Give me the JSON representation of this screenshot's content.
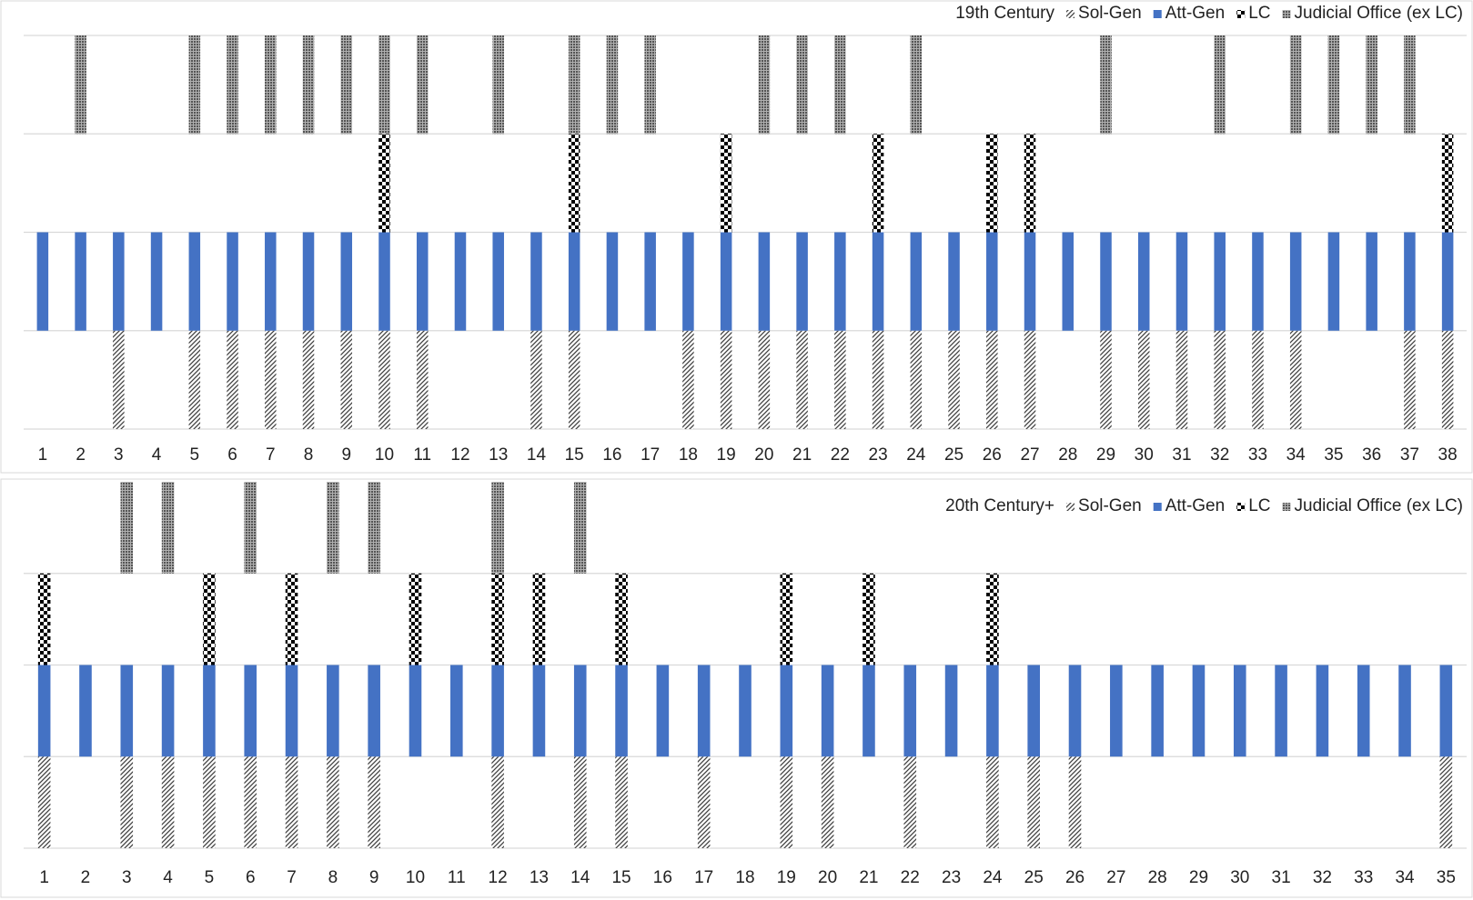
{
  "chart_data": [
    {
      "type": "bar",
      "title": "19th Century",
      "categories": [
        "1",
        "2",
        "3",
        "4",
        "5",
        "6",
        "7",
        "8",
        "9",
        "10",
        "11",
        "12",
        "13",
        "14",
        "15",
        "16",
        "17",
        "18",
        "19",
        "20",
        "21",
        "22",
        "23",
        "24",
        "25",
        "26",
        "27",
        "28",
        "29",
        "30",
        "31",
        "32",
        "33",
        "34",
        "35",
        "36",
        "37",
        "38"
      ],
      "series": [
        {
          "name": "Sol-Gen",
          "color": "#404040",
          "pattern": "hatch",
          "values": [
            0,
            0,
            1,
            0,
            1,
            1,
            1,
            1,
            1,
            1,
            1,
            0,
            0,
            1,
            1,
            0,
            0,
            1,
            1,
            1,
            1,
            1,
            1,
            1,
            1,
            1,
            1,
            0,
            1,
            1,
            1,
            1,
            1,
            1,
            0,
            0,
            1,
            1
          ]
        },
        {
          "name": "Att-Gen",
          "color": "#4472c4",
          "pattern": "solid",
          "values": [
            1,
            1,
            1,
            1,
            1,
            1,
            1,
            1,
            1,
            1,
            1,
            1,
            1,
            1,
            1,
            1,
            1,
            1,
            1,
            1,
            1,
            1,
            1,
            1,
            1,
            1,
            1,
            1,
            1,
            1,
            1,
            1,
            1,
            1,
            1,
            1,
            1,
            1
          ]
        },
        {
          "name": "LC",
          "color": "#000000",
          "pattern": "checker",
          "values": [
            0,
            0,
            0,
            0,
            0,
            0,
            0,
            0,
            0,
            1,
            0,
            0,
            0,
            0,
            1,
            0,
            0,
            0,
            1,
            0,
            0,
            0,
            1,
            0,
            0,
            1,
            1,
            0,
            0,
            0,
            0,
            0,
            0,
            0,
            0,
            0,
            0,
            1
          ]
        },
        {
          "name": "Judicial Office (ex LC)",
          "color": "#707070",
          "pattern": "dots",
          "values": [
            0,
            1,
            0,
            0,
            1,
            1,
            1,
            1,
            1,
            1,
            1,
            0,
            1,
            0,
            1,
            1,
            1,
            0,
            0,
            1,
            1,
            1,
            0,
            1,
            0,
            0,
            0,
            0,
            1,
            0,
            0,
            1,
            0,
            1,
            1,
            1,
            1,
            0
          ]
        }
      ],
      "ylim": [
        0,
        4
      ],
      "yticks": [
        0,
        1,
        2,
        3,
        4
      ],
      "grid": true
    },
    {
      "type": "bar",
      "title": "20th Century+",
      "categories": [
        "1",
        "2",
        "3",
        "4",
        "5",
        "6",
        "7",
        "8",
        "9",
        "10",
        "11",
        "12",
        "13",
        "14",
        "15",
        "16",
        "17",
        "18",
        "19",
        "20",
        "21",
        "22",
        "23",
        "24",
        "25",
        "26",
        "27",
        "28",
        "29",
        "30",
        "31",
        "32",
        "33",
        "34",
        "35"
      ],
      "series": [
        {
          "name": "Sol-Gen",
          "color": "#404040",
          "pattern": "hatch",
          "values": [
            1,
            0,
            1,
            1,
            1,
            1,
            1,
            1,
            1,
            0,
            0,
            1,
            0,
            1,
            1,
            0,
            1,
            0,
            1,
            1,
            0,
            1,
            0,
            1,
            1,
            1,
            0,
            0,
            0,
            0,
            0,
            0,
            0,
            0,
            1
          ]
        },
        {
          "name": "Att-Gen",
          "color": "#4472c4",
          "pattern": "solid",
          "values": [
            1,
            1,
            1,
            1,
            1,
            1,
            1,
            1,
            1,
            1,
            1,
            1,
            1,
            1,
            1,
            1,
            1,
            1,
            1,
            1,
            1,
            1,
            1,
            1,
            1,
            1,
            1,
            1,
            1,
            1,
            1,
            1,
            1,
            1,
            1
          ]
        },
        {
          "name": "LC",
          "color": "#000000",
          "pattern": "checker",
          "values": [
            1,
            0,
            0,
            0,
            1,
            0,
            1,
            0,
            0,
            1,
            0,
            1,
            1,
            0,
            1,
            0,
            0,
            0,
            1,
            0,
            1,
            0,
            0,
            1,
            0,
            0,
            0,
            0,
            0,
            0,
            0,
            0,
            0,
            0,
            0
          ]
        },
        {
          "name": "Judicial Office (ex LC)",
          "color": "#707070",
          "pattern": "dots",
          "values": [
            0,
            0,
            1,
            1,
            0,
            1,
            0,
            1,
            1,
            0,
            0,
            1,
            0,
            1,
            0,
            0,
            0,
            0,
            0,
            0,
            0,
            0,
            0,
            0,
            0,
            0,
            0,
            0,
            0,
            0,
            0,
            0,
            0,
            0,
            0
          ]
        }
      ],
      "ylim": [
        0,
        4
      ],
      "yticks": [
        0,
        1,
        2,
        3,
        4
      ],
      "grid": true
    }
  ]
}
